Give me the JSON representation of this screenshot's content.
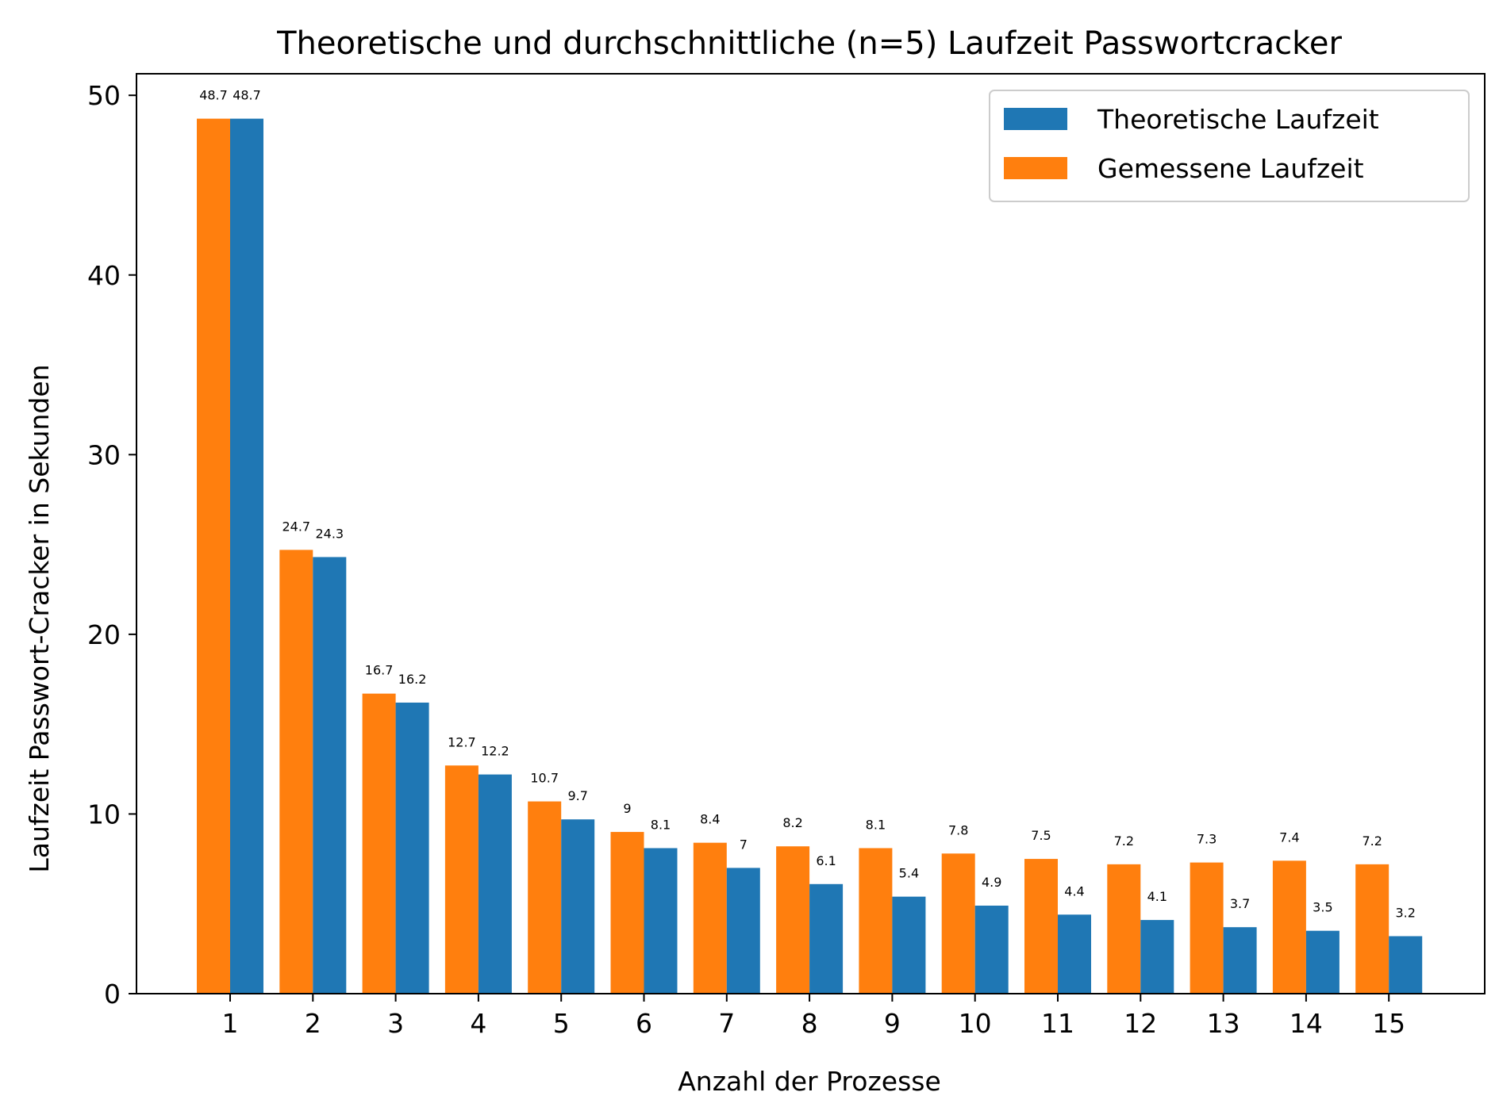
{
  "chart_data": {
    "type": "bar",
    "title": "Theoretische und durchschnittliche (n=5) Laufzeit Passwortcracker",
    "xlabel": "Anzahl der Prozesse",
    "ylabel": "Laufzeit Passwort-Cracker in Sekunden",
    "categories": [
      "1",
      "2",
      "3",
      "4",
      "5",
      "6",
      "7",
      "8",
      "9",
      "10",
      "11",
      "12",
      "13",
      "14",
      "15"
    ],
    "ylim": [
      0,
      51.2
    ],
    "yticks": [
      0,
      10,
      20,
      30,
      40,
      50
    ],
    "ytick_labels": [
      "0",
      "10",
      "20",
      "30",
      "40",
      "50"
    ],
    "legend_position": "top-right",
    "grid": false,
    "series": [
      {
        "name": "Gemessene Laufzeit",
        "color": "#ff7f0e",
        "values": [
          48.7,
          24.7,
          16.7,
          12.7,
          10.7,
          9,
          8.4,
          8.2,
          8.1,
          7.8,
          7.5,
          7.2,
          7.3,
          7.4,
          7.2
        ],
        "labels": [
          "48.7",
          "24.7",
          "16.7",
          "12.7",
          "10.7",
          "9",
          "8.4",
          "8.2",
          "8.1",
          "7.8",
          "7.5",
          "7.2",
          "7.3",
          "7.4",
          "7.2"
        ]
      },
      {
        "name": "Theoretische Laufzeit",
        "color": "#1f77b4",
        "values": [
          48.7,
          24.3,
          16.2,
          12.2,
          9.7,
          8.1,
          7,
          6.1,
          5.4,
          4.9,
          4.4,
          4.1,
          3.7,
          3.5,
          3.2
        ],
        "labels": [
          "48.7",
          "24.3",
          "16.2",
          "12.2",
          "9.7",
          "8.1",
          "7",
          "6.1",
          "5.4",
          "4.9",
          "4.4",
          "4.1",
          "3.7",
          "3.5",
          "3.2"
        ]
      }
    ],
    "legend": [
      "Theoretische Laufzeit",
      "Gemessene Laufzeit"
    ]
  }
}
